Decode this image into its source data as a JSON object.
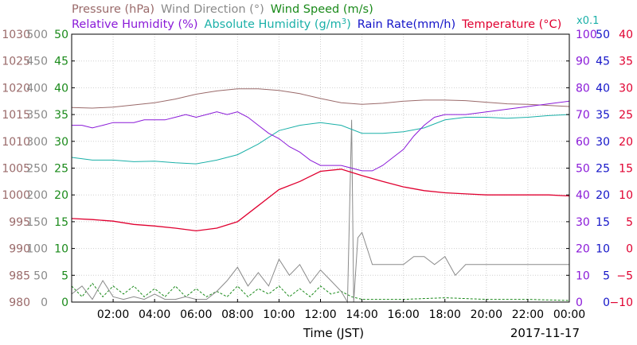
{
  "chart_data": {
    "type": "line",
    "xlabel": "Time (JST)",
    "date_label": "2017-11-17",
    "x_ticks": [
      "02:00",
      "04:00",
      "06:00",
      "08:00",
      "10:00",
      "12:00",
      "14:00",
      "16:00",
      "18:00",
      "20:00",
      "22:00",
      "00:00"
    ],
    "x_range_hours": [
      0,
      24
    ],
    "grid": true,
    "legend": [
      {
        "text": "Pressure (hPa)",
        "color": "#9a6a6a"
      },
      {
        "text": "Wind Direction (°)",
        "color": "#8a8a8a"
      },
      {
        "text": "Wind Speed (m/s)",
        "color": "#1a8a1a"
      },
      {
        "text": "Relative Humidity (%)",
        "color": "#8a1ad8"
      },
      {
        "text": "Absolute Humidity (g/m",
        "sup": "3",
        "tail": ")",
        "color": "#1ab0a8"
      },
      {
        "text": "Rain Rate(mm/h)",
        "color": "#1414c8"
      },
      {
        "text": "Temperature (°C)",
        "color": "#e00030"
      }
    ],
    "x01_label": "x0.1",
    "axes": {
      "pressure": {
        "color": "#9a6a6a",
        "ticks": [
          "1030",
          "1025",
          "1020",
          "1015",
          "1010",
          "1005",
          "1000",
          "995",
          "990",
          "985",
          "980"
        ],
        "ylim": [
          980,
          1030
        ]
      },
      "wind_direction": {
        "color": "#8a8a8a",
        "ticks": [
          "500",
          "450",
          "400",
          "350",
          "300",
          "250",
          "200",
          "150",
          "100",
          "50",
          "0"
        ],
        "ylim": [
          0,
          500
        ]
      },
      "wind_speed": {
        "color": "#1a8a1a",
        "ticks": [
          "50",
          "45",
          "40",
          "35",
          "30",
          "25",
          "20",
          "15",
          "10",
          "5",
          "0"
        ],
        "ylim": [
          0,
          50
        ]
      },
      "relative_humidity": {
        "color": "#8a1ad8",
        "ticks": [
          "100",
          "90",
          "80",
          "70",
          "60",
          "50",
          "40",
          "30",
          "20",
          "10",
          "0"
        ],
        "ylim": [
          0,
          100
        ]
      },
      "rain_rate": {
        "color": "#1414c8",
        "ticks": [
          "50",
          "45",
          "40",
          "35",
          "30",
          "25",
          "20",
          "15",
          "10",
          "5",
          "0"
        ],
        "ylim": [
          0,
          50
        ]
      },
      "temperature": {
        "color": "#e00030",
        "ticks": [
          "40",
          "35",
          "30",
          "25",
          "20",
          "15",
          "10",
          "5",
          "0",
          "−5",
          "−10"
        ],
        "ylim": [
          -10,
          40
        ]
      }
    },
    "series": [
      {
        "name": "Pressure (hPa)",
        "color": "#9a6a6a",
        "axis": "pressure",
        "x": [
          0,
          1,
          2,
          3,
          4,
          5,
          6,
          7,
          8,
          9,
          10,
          11,
          12,
          13,
          14,
          15,
          16,
          17,
          18,
          19,
          20,
          21,
          22,
          23,
          24
        ],
        "values": [
          1016.3,
          1016.2,
          1016.4,
          1016.8,
          1017.2,
          1017.9,
          1018.8,
          1019.4,
          1019.8,
          1019.8,
          1019.5,
          1018.9,
          1018.0,
          1017.2,
          1016.9,
          1017.1,
          1017.5,
          1017.7,
          1017.7,
          1017.6,
          1017.3,
          1017.0,
          1016.9,
          1016.7,
          1016.5
        ]
      },
      {
        "name": "Relative Humidity (%)",
        "color": "#8a1ad8",
        "axis": "relative_humidity",
        "x": [
          0,
          0.5,
          1,
          1.5,
          2,
          2.5,
          3,
          3.5,
          4,
          4.5,
          5,
          5.5,
          6,
          6.5,
          7,
          7.5,
          8,
          8.5,
          9,
          9.5,
          10,
          10.5,
          11,
          11.5,
          12,
          12.5,
          13,
          13.5,
          14,
          14.5,
          15,
          15.5,
          16,
          16.5,
          17,
          17.5,
          18,
          19,
          20,
          21,
          22,
          23,
          24
        ],
        "values": [
          66,
          66,
          65,
          66,
          67,
          67,
          67,
          68,
          68,
          68,
          69,
          70,
          69,
          70,
          71,
          70,
          71,
          69,
          66,
          63,
          61,
          58,
          56,
          53,
          51,
          51,
          51,
          50,
          49,
          49,
          51,
          54,
          57,
          62,
          66,
          69,
          70,
          70,
          71,
          72,
          73,
          74,
          75
        ]
      },
      {
        "name": "Absolute Humidity (g/m3)",
        "color": "#1ab0a8",
        "axis": "wind_speed",
        "x": [
          0,
          1,
          2,
          3,
          4,
          5,
          6,
          7,
          8,
          9,
          10,
          11,
          12,
          13,
          14,
          15,
          16,
          17,
          18,
          19,
          20,
          21,
          22,
          23,
          24
        ],
        "values": [
          27,
          26.5,
          26.5,
          26.2,
          26.3,
          26,
          25.8,
          26.5,
          27.5,
          29.5,
          32,
          33,
          33.5,
          33,
          31.5,
          31.5,
          31.8,
          32.5,
          34,
          34.5,
          34.5,
          34.3,
          34.5,
          34.8,
          35
        ]
      },
      {
        "name": "Temperature (°C)",
        "color": "#e00030",
        "axis": "temperature",
        "x": [
          0,
          1,
          2,
          3,
          4,
          5,
          6,
          7,
          8,
          9,
          10,
          11,
          12,
          13,
          14,
          15,
          16,
          17,
          18,
          19,
          20,
          21,
          22,
          23,
          24
        ],
        "values": [
          5.6,
          5.4,
          5.1,
          4.5,
          4.2,
          3.8,
          3.3,
          3.8,
          5.0,
          8.0,
          11.0,
          12.5,
          14.4,
          14.8,
          13.6,
          12.5,
          11.5,
          10.8,
          10.4,
          10.2,
          10.0,
          10.0,
          10.0,
          10.0,
          9.8
        ]
      },
      {
        "name": "Wind Direction (°)",
        "color": "#8a8a8a",
        "axis": "wind_direction",
        "x": [
          0,
          0.5,
          1,
          1.5,
          2,
          2.5,
          3,
          3.5,
          4,
          4.5,
          5,
          5.5,
          6,
          6.5,
          7,
          7.5,
          8,
          8.5,
          9,
          9.5,
          10,
          10.5,
          11,
          11.5,
          12,
          12.5,
          13,
          13.3,
          13.5,
          13.6,
          13.8,
          14,
          14.5,
          15,
          15.5,
          16,
          16.5,
          17,
          17.5,
          18,
          18.5,
          19,
          20,
          21,
          22,
          23,
          24
        ],
        "values": [
          15,
          30,
          5,
          40,
          10,
          5,
          10,
          5,
          15,
          5,
          5,
          10,
          5,
          5,
          20,
          40,
          65,
          30,
          55,
          30,
          80,
          50,
          70,
          35,
          60,
          40,
          20,
          0,
          340,
          0,
          120,
          130,
          70,
          70,
          70,
          70,
          85,
          85,
          70,
          85,
          50,
          70,
          70,
          70,
          70,
          70,
          70
        ]
      },
      {
        "name": "Wind Speed (m/s)",
        "color": "#1a8a1a",
        "axis": "wind_speed",
        "x": [
          0,
          0.5,
          1,
          1.5,
          2,
          2.5,
          3,
          3.5,
          4,
          4.5,
          5,
          5.5,
          6,
          6.5,
          7,
          7.5,
          8,
          8.5,
          9,
          9.5,
          10,
          10.5,
          11,
          11.5,
          12,
          12.5,
          13,
          13.5,
          14,
          16,
          18,
          20,
          22,
          24
        ],
        "values": [
          3,
          1,
          3.5,
          1,
          3,
          1.5,
          3,
          1,
          2.5,
          1,
          3,
          1,
          2.5,
          1,
          2,
          1,
          3,
          1,
          2.5,
          1.5,
          3,
          1,
          2.5,
          1,
          3,
          1.5,
          2,
          1,
          0.5,
          0.5,
          0.8,
          0.5,
          0.5,
          0.3
        ]
      },
      {
        "name": "Rain Rate(mm/h)",
        "color": "#1414c8",
        "axis": "rain_rate",
        "x": [
          0,
          24
        ],
        "values": [
          0,
          0
        ]
      }
    ]
  }
}
